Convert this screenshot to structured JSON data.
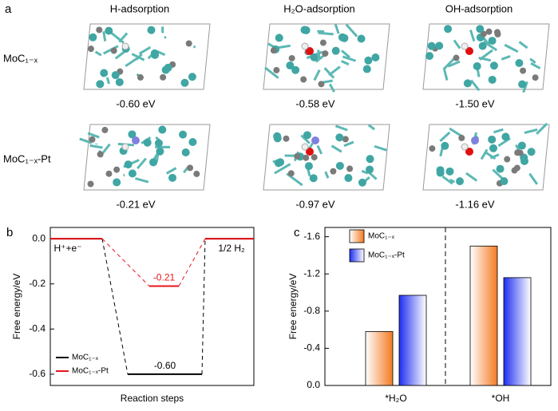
{
  "figure_a": {
    "panel": "a",
    "columns": [
      "H-adsorption",
      "H₂O-adsorption",
      "OH-adsorption"
    ],
    "rows": [
      {
        "label": "MoC₁₋ₓ",
        "energies": [
          "-0.60 eV",
          "-0.58 eV",
          "-1.50 eV"
        ]
      },
      {
        "label": "MoC₁₋ₓ-Pt",
        "energies": [
          "-0.21 eV",
          "-0.97 eV",
          "-1.16 eV"
        ]
      }
    ]
  },
  "chart_data": [
    {
      "type": "level",
      "panel": "b",
      "xlabel": "Reaction steps",
      "ylabel": "Free energy/eV",
      "categories": [
        "H⁺+e⁻",
        null,
        "1/2 H₂"
      ],
      "series": [
        {
          "name": "MoC₁₋ₓ",
          "color": "#000000",
          "values": [
            0,
            -0.6,
            0
          ],
          "value_labels": [
            null,
            "-0.60",
            null
          ]
        },
        {
          "name": "MoC₁₋ₓ-Pt",
          "color": "#e8161b",
          "values": [
            0,
            -0.21,
            0
          ],
          "value_labels": [
            null,
            "-0.21",
            null
          ]
        }
      ],
      "ylim": [
        -0.65,
        0.05
      ],
      "yticks": [
        {
          "value": 0,
          "label": "0.0"
        },
        -0.2,
        -0.4,
        -0.6
      ],
      "legend": "lower left"
    },
    {
      "type": "bar",
      "panel": "c",
      "ylabel": "Free energy/eV",
      "categories": [
        "*H₂O",
        "*OH"
      ],
      "series": [
        {
          "name": "MoC₁₋ₓ",
          "color": "#f47a20",
          "values": [
            -0.58,
            -1.5
          ]
        },
        {
          "name": "MoC₁₋ₓ-Pt",
          "color": "#1e2ff0",
          "values": [
            -0.97,
            -1.16
          ]
        }
      ],
      "ylim": [
        0,
        -1.7
      ],
      "yticks": [
        {
          "value": 0,
          "label": "0.0"
        },
        -0.4,
        -0.8,
        -1.2,
        -1.6
      ],
      "legend": "upper left"
    }
  ]
}
